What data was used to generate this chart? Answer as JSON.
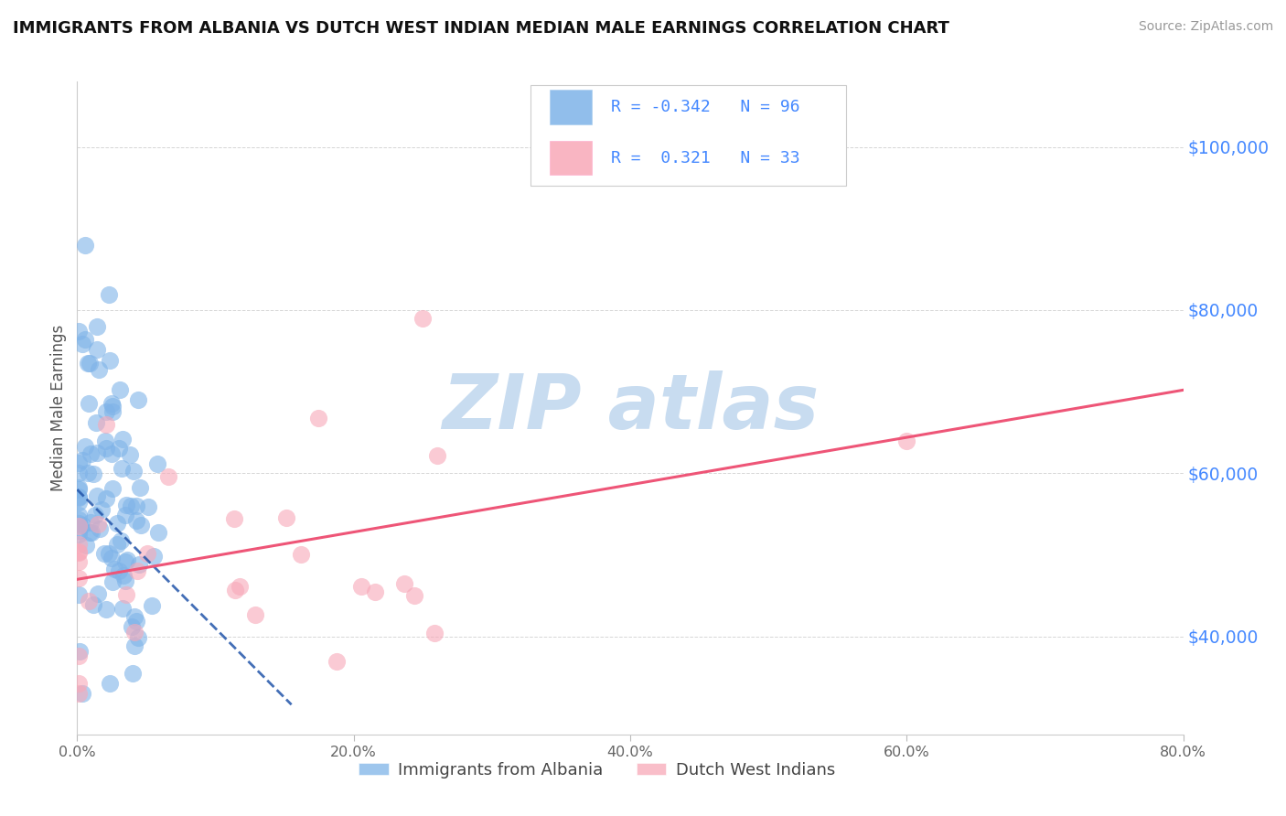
{
  "title": "IMMIGRANTS FROM ALBANIA VS DUTCH WEST INDIAN MEDIAN MALE EARNINGS CORRELATION CHART",
  "source": "Source: ZipAtlas.com",
  "ylabel": "Median Male Earnings",
  "xlim": [
    0,
    0.8
  ],
  "ylim": [
    28000,
    108000
  ],
  "xtick_labels": [
    "0.0%",
    "20.0%",
    "40.0%",
    "60.0%",
    "80.0%"
  ],
  "xtick_values": [
    0.0,
    0.2,
    0.4,
    0.6,
    0.8
  ],
  "ytick_labels": [
    "$40,000",
    "$60,000",
    "$80,000",
    "$100,000"
  ],
  "ytick_values": [
    40000,
    60000,
    80000,
    100000
  ],
  "albania_color": "#7EB3E8",
  "dutch_color": "#F8A8B8",
  "albania_line_color": "#2255AA",
  "dutch_line_color": "#EE5577",
  "albania_R": -0.342,
  "albania_N": 96,
  "dutch_R": 0.321,
  "dutch_N": 33,
  "background_color": "#ffffff",
  "grid_color": "#bbbbbb",
  "title_color": "#111111",
  "axis_label_color": "#4488FF",
  "watermark_color": "#C8DCF0",
  "legend_box_color": "#dddddd",
  "bottom_legend_color": "#444444"
}
